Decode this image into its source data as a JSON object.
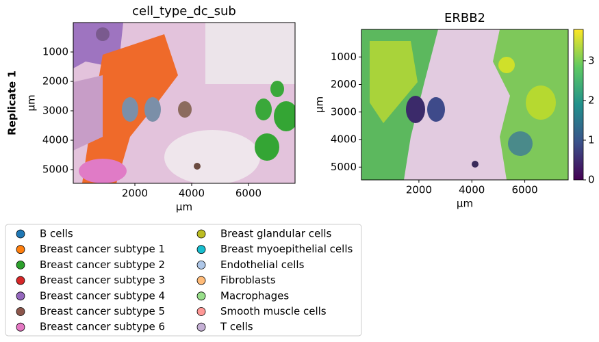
{
  "chart_data": [
    {
      "type": "spatial",
      "title": "cell_type_dc_sub",
      "row_label": "Replicate 1",
      "xlabel": "µm",
      "ylabel": "µm",
      "xlim": [
        -170,
        7640
      ],
      "xticks": [
        2000,
        4000,
        6000
      ],
      "ylim": [
        5465,
        0
      ],
      "yticks": [
        1000,
        2000,
        3000,
        4000,
        5000
      ],
      "legend": {
        "labels": [
          "B cells",
          "Breast cancer subtype 1",
          "Breast cancer subtype 2",
          "Breast cancer subtype 3",
          "Breast cancer subtype 4",
          "Breast cancer subtype 5",
          "Breast cancer subtype 6",
          "Breast glandular cells",
          "Breast myoepithelial cells",
          "Endothelial cells",
          "Fibroblasts",
          "Macrophages",
          "Smooth muscle cells",
          "T cells"
        ],
        "colors": [
          "#1f77b4",
          "#ff7f0e",
          "#2ca02c",
          "#d62728",
          "#9467bd",
          "#8c564b",
          "#e377c2",
          "#bcbd22",
          "#17becf",
          "#aec7e8",
          "#ffbb78",
          "#98df8a",
          "#ff9896",
          "#c5b0d5"
        ]
      }
    },
    {
      "type": "spatial",
      "title": "ERBB2",
      "xlabel": "µm",
      "ylabel": "µm",
      "xlim": [
        -170,
        7640
      ],
      "xticks": [
        2000,
        4000,
        6000
      ],
      "ylim": [
        5465,
        0
      ],
      "yticks": [
        1000,
        2000,
        3000,
        4000,
        5000
      ],
      "colorbar": {
        "clim": [
          0,
          3.79
        ],
        "ticks": [
          0,
          1,
          2,
          3
        ],
        "colormap": "viridis"
      }
    }
  ]
}
